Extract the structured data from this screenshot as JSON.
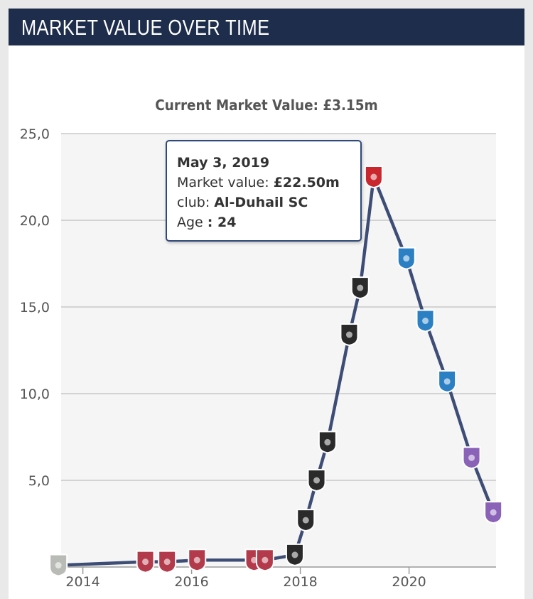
{
  "header": {
    "title": "MARKET VALUE OVER TIME"
  },
  "chart_data": {
    "type": "line",
    "title": "Current Market Value: £3.15m",
    "xlabel": "",
    "ylabel": "",
    "x_ticks": [
      "2014",
      "2016",
      "2018",
      "2020"
    ],
    "x_tick_values": [
      2014,
      2016,
      2018,
      2020
    ],
    "y_ticks": [
      "25,0",
      "20,0",
      "15,0",
      "10,0",
      "5,0"
    ],
    "y_tick_values": [
      25,
      20,
      15,
      10,
      5
    ],
    "xlim": [
      2013.6,
      2021.6
    ],
    "ylim": [
      0,
      25
    ],
    "grid": true,
    "line_color": "#3d4d75",
    "series": [
      {
        "x": [
          2013.55,
          2015.15,
          2015.55,
          2016.1,
          2017.15,
          2017.35,
          2017.9,
          2018.1,
          2018.3,
          2018.5,
          2018.9,
          2019.1,
          2019.35,
          2019.95,
          2020.3,
          2020.7,
          2021.15,
          2021.55
        ],
        "y": [
          0.1,
          0.3,
          0.3,
          0.4,
          0.4,
          0.4,
          0.7,
          2.7,
          5.0,
          7.2,
          13.4,
          16.1,
          22.5,
          17.8,
          14.2,
          10.7,
          6.3,
          3.15
        ],
        "clubs": [
          "grey",
          "redblue",
          "redblue",
          "redblue",
          "redblue",
          "redblue",
          "black",
          "black",
          "black",
          "black",
          "black",
          "black",
          "red",
          "blue",
          "blue",
          "blue",
          "purple",
          "purple"
        ]
      }
    ],
    "club_colors": {
      "grey": "#b9bcb6",
      "redblue": "#b23a4a",
      "black": "#2a2a2a",
      "red": "#c9262d",
      "blue": "#2b7fc3",
      "purple": "#8a62b8"
    },
    "tooltip": {
      "date": "May 3, 2019",
      "value_label": "Market value: ",
      "value": "£22.50m",
      "club_label": "club: ",
      "club": "Al-Duhail SC",
      "age_label": "Age ",
      "age": ": 24"
    }
  }
}
